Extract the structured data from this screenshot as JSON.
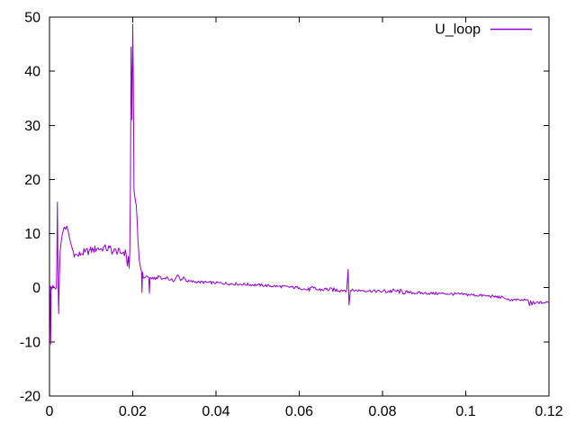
{
  "window": {
    "background": "#ffffff"
  },
  "legend": {
    "label": "U_loop",
    "sample_color": "#9400d3"
  },
  "chart_data": {
    "type": "line",
    "title": "",
    "xlabel": "",
    "ylabel": "",
    "xlim": [
      0,
      0.12
    ],
    "ylim": [
      -20,
      50
    ],
    "xticks": [
      0,
      0.02,
      0.04,
      0.06,
      0.08,
      0.1,
      0.12
    ],
    "xtick_labels": [
      "0",
      "0.02",
      "0.04",
      "0.06",
      "0.08",
      "0.1",
      "0.12"
    ],
    "yticks": [
      -20,
      -10,
      0,
      10,
      20,
      30,
      40,
      50
    ],
    "ytick_labels": [
      "-20",
      "-10",
      "0",
      "10",
      "20",
      "30",
      "40",
      "50"
    ],
    "grid": false,
    "legend_position": "inside top-right",
    "axis_color": "#000000",
    "tick_length": 6,
    "series": [
      {
        "name": "U_loop",
        "color": "#9400d3",
        "points": [
          [
            0.0,
            -0.3
          ],
          [
            0.00015,
            0.3
          ],
          [
            0.00028,
            -10.4
          ],
          [
            0.0004,
            0.2
          ],
          [
            0.00165,
            0.0
          ],
          [
            0.00175,
            4.0
          ],
          [
            0.0019,
            15.8
          ],
          [
            0.002,
            6.0
          ],
          [
            0.00212,
            -1.5
          ],
          [
            0.0022,
            -4.8
          ],
          [
            0.00235,
            1.0
          ],
          [
            0.00255,
            6.5
          ],
          [
            0.00285,
            8.8
          ],
          [
            0.0032,
            10.2
          ],
          [
            0.00355,
            11.2
          ],
          [
            0.00385,
            10.8
          ],
          [
            0.00415,
            11.4
          ],
          [
            0.00445,
            10.6
          ],
          [
            0.00475,
            9.4
          ],
          [
            0.0051,
            8.2
          ],
          [
            0.00555,
            7.0
          ],
          [
            0.0061,
            6.1
          ],
          [
            0.0068,
            5.9
          ],
          [
            0.0076,
            6.3
          ],
          [
            0.0085,
            6.6
          ],
          [
            0.0095,
            6.8
          ],
          [
            0.0105,
            7.0
          ],
          [
            0.0115,
            7.3
          ],
          [
            0.0125,
            7.1
          ],
          [
            0.013,
            7.6
          ],
          [
            0.0136,
            7.1
          ],
          [
            0.0144,
            7.4
          ],
          [
            0.0152,
            6.6
          ],
          [
            0.016,
            6.9
          ],
          [
            0.017,
            6.4
          ],
          [
            0.0178,
            6.6
          ],
          [
            0.0184,
            6.3
          ],
          [
            0.0187,
            4.0
          ],
          [
            0.01895,
            5.8
          ],
          [
            0.01915,
            3.6
          ],
          [
            0.0193,
            7.0
          ],
          [
            0.01945,
            20.0
          ],
          [
            0.0196,
            44.5
          ],
          [
            0.0198,
            31.0
          ],
          [
            0.02,
            48.7
          ],
          [
            0.02015,
            38.0
          ],
          [
            0.0203,
            18.0
          ],
          [
            0.0206,
            16.2
          ],
          [
            0.02085,
            15.2
          ],
          [
            0.02105,
            12.5
          ],
          [
            0.02125,
            8.8
          ],
          [
            0.02155,
            5.2
          ],
          [
            0.02185,
            3.8
          ],
          [
            0.0221,
            3.0
          ],
          [
            0.02222,
            -0.9
          ],
          [
            0.02235,
            2.9
          ],
          [
            0.02255,
            1.8
          ],
          [
            0.0233,
            2.2
          ],
          [
            0.02385,
            1.8
          ],
          [
            0.024,
            -1.0
          ],
          [
            0.02415,
            1.9
          ],
          [
            0.025,
            1.6
          ],
          [
            0.0266,
            2.1
          ],
          [
            0.027,
            1.5
          ],
          [
            0.0281,
            2.0
          ],
          [
            0.029,
            1.4
          ],
          [
            0.03,
            1.35
          ],
          [
            0.0308,
            2.4
          ],
          [
            0.0315,
            1.3
          ],
          [
            0.0322,
            2.0
          ],
          [
            0.033,
            1.2
          ],
          [
            0.036,
            1.05
          ],
          [
            0.04,
            0.9
          ],
          [
            0.045,
            0.7
          ],
          [
            0.05,
            0.5
          ],
          [
            0.055,
            0.25
          ],
          [
            0.06,
            0.0
          ],
          [
            0.062,
            -0.4
          ],
          [
            0.0635,
            -0.05
          ],
          [
            0.0645,
            -0.4
          ],
          [
            0.066,
            -0.3
          ],
          [
            0.07,
            -0.45
          ],
          [
            0.0714,
            -0.4
          ],
          [
            0.07175,
            3.4
          ],
          [
            0.07195,
            -3.2
          ],
          [
            0.0723,
            -0.5
          ],
          [
            0.075,
            -0.5
          ],
          [
            0.08,
            -0.7
          ],
          [
            0.083,
            -0.6
          ],
          [
            0.086,
            -0.9
          ],
          [
            0.09,
            -1.0
          ],
          [
            0.095,
            -1.1
          ],
          [
            0.1,
            -1.25
          ],
          [
            0.105,
            -1.5
          ],
          [
            0.109,
            -1.8
          ],
          [
            0.11,
            -2.2
          ],
          [
            0.113,
            -2.3
          ],
          [
            0.115,
            -2.3
          ],
          [
            0.1153,
            -3.3
          ],
          [
            0.1156,
            -2.4
          ],
          [
            0.1159,
            -3.2
          ],
          [
            0.1162,
            -2.5
          ],
          [
            0.1165,
            -3.0
          ],
          [
            0.117,
            -2.7
          ],
          [
            0.1185,
            -2.8
          ],
          [
            0.12,
            -2.7
          ]
        ],
        "noise_bands": [
          [
            0.0,
            0.00165,
            0.6
          ],
          [
            0.0024,
            0.0046,
            0.3
          ],
          [
            0.0048,
            0.0183,
            0.75
          ],
          [
            0.0226,
            0.0305,
            0.3
          ],
          [
            0.0305,
            0.0615,
            0.27
          ],
          [
            0.0615,
            0.0712,
            0.4
          ],
          [
            0.0724,
            0.079,
            0.27
          ],
          [
            0.079,
            0.086,
            0.45
          ],
          [
            0.086,
            0.109,
            0.27
          ],
          [
            0.11,
            0.1148,
            0.25
          ],
          [
            0.117,
            0.12,
            0.25
          ]
        ]
      }
    ]
  }
}
